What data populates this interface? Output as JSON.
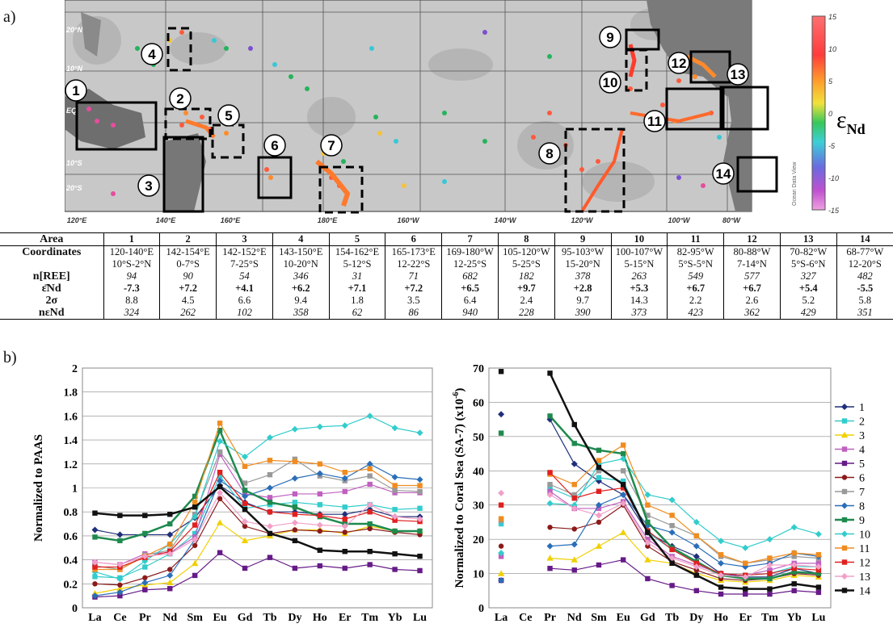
{
  "panel_a_label": "a)",
  "panel_b_label": "b)",
  "map": {
    "lat_labels": [
      "20°N",
      "10°N",
      "EQ",
      "10°S",
      "20°S"
    ],
    "lon_labels": [
      "120°E",
      "140°E",
      "160°E",
      "180°E",
      "160°W",
      "140°W",
      "120°W",
      "100°W",
      "80°W"
    ],
    "colorbar_ticks": [
      "15",
      "10",
      "5",
      "0",
      "-5",
      "-10",
      "-15"
    ],
    "colorbar_label": "εNd",
    "colorbar_label_main": "ε",
    "colorbar_label_sub": "Nd",
    "watermark": "Ocean Data View",
    "areas": [
      "1",
      "2",
      "3",
      "4",
      "5",
      "6",
      "7",
      "8",
      "9",
      "10",
      "11",
      "12",
      "13",
      "14"
    ]
  },
  "table": {
    "header": "Area",
    "areas": [
      "1",
      "2",
      "3",
      "4",
      "5",
      "6",
      "7",
      "8",
      "9",
      "10",
      "11",
      "12",
      "13",
      "14"
    ],
    "rows": [
      {
        "label": "Coordinates",
        "style": "",
        "values": [
          "120-140°E",
          "142-154°E",
          "142-152°E",
          "143-150°E",
          "154-162°E",
          "165-173°E",
          "169-180°W",
          "105-120°W",
          "95-103°W",
          "100-107°W",
          "82-95°W",
          "80-88°W",
          "70-82°W",
          "68-77°W"
        ]
      },
      {
        "label": "",
        "style": "",
        "values": [
          "10°S-2°N",
          "0-7°S",
          "7-25°S",
          "10-20°N",
          "5-12°S",
          "12-22°S",
          "12-25°S",
          "5-25°S",
          "15-20°N",
          "5-15°N",
          "5°S-5°N",
          "7-14°N",
          "5°S-6°N",
          "12-20°S"
        ]
      },
      {
        "label": "n[REE]",
        "style": "i",
        "values": [
          "94",
          "90",
          "54",
          "346",
          "31",
          "71",
          "682",
          "182",
          "378",
          "263",
          "549",
          "577",
          "327",
          "482"
        ]
      },
      {
        "label": "ε̄Nd",
        "style": "b",
        "values": [
          "-7.3",
          "+7.2",
          "+4.1",
          "+6.2",
          "+7.1",
          "+7.2",
          "+6.5",
          "+9.7",
          "+2.8",
          "+5.3",
          "+6.7",
          "+6.7",
          "+5.4",
          "-5.5"
        ]
      },
      {
        "label": "2σ",
        "style": "",
        "values": [
          "8.8",
          "4.5",
          "6.6",
          "9.4",
          "1.8",
          "3.5",
          "6.4",
          "2.4",
          "9.7",
          "14.3",
          "2.2",
          "2.6",
          "5.2",
          "5.8"
        ]
      },
      {
        "label": "nεNd",
        "style": "i",
        "values": [
          "324",
          "262",
          "102",
          "358",
          "62",
          "86",
          "940",
          "228",
          "390",
          "373",
          "423",
          "362",
          "429",
          "351"
        ]
      }
    ]
  },
  "chart_data": [
    {
      "type": "line",
      "ylabel": "Normalized to PAAS",
      "categories": [
        "La",
        "Ce",
        "Pr",
        "Nd",
        "Sm",
        "Eu",
        "Gd",
        "Tb",
        "Dy",
        "Ho",
        "Er",
        "Tm",
        "Yb",
        "Lu"
      ],
      "ylim": [
        0,
        2
      ],
      "yticks": [
        "0",
        "0.2",
        "0.4",
        "0.6",
        "0.8",
        "1",
        "1.2",
        "1.4",
        "1.6",
        "1.8",
        "2"
      ],
      "series": [
        {
          "name": "1",
          "color": "#1f2f7a",
          "marker": "diamond",
          "values": [
            0.65,
            0.61,
            0.61,
            0.61,
            0.75,
            1.02,
            0.88,
            0.8,
            0.8,
            0.78,
            0.78,
            0.82,
            0.76,
            0.76
          ]
        },
        {
          "name": "2",
          "color": "#33cccc",
          "marker": "square",
          "values": [
            0.26,
            0.25,
            0.34,
            0.45,
            0.62,
            1.1,
            0.83,
            0.86,
            0.88,
            0.86,
            0.84,
            0.86,
            0.82,
            0.83
          ]
        },
        {
          "name": "3",
          "color": "#f0d000",
          "marker": "triangle",
          "values": [
            0.12,
            0.16,
            0.19,
            0.21,
            0.37,
            0.71,
            0.56,
            0.6,
            0.65,
            0.65,
            0.62,
            0.68,
            0.64,
            0.64
          ]
        },
        {
          "name": "4",
          "color": "#c060c0",
          "marker": "square",
          "values": [
            0.38,
            0.36,
            0.45,
            0.46,
            0.59,
            1.28,
            0.95,
            0.92,
            0.95,
            0.95,
            0.97,
            1.03,
            0.96,
            0.96
          ]
        },
        {
          "name": "5",
          "color": "#661a88",
          "marker": "square",
          "values": [
            0.09,
            0.1,
            0.15,
            0.16,
            0.27,
            0.46,
            0.33,
            0.42,
            0.33,
            0.35,
            0.33,
            0.36,
            0.32,
            0.31
          ]
        },
        {
          "name": "6",
          "color": "#8b1a1a",
          "marker": "circle",
          "values": [
            0.2,
            0.19,
            0.25,
            0.32,
            0.52,
            0.91,
            0.68,
            0.62,
            0.65,
            0.64,
            0.63,
            0.66,
            0.63,
            0.61
          ]
        },
        {
          "name": "7",
          "color": "#999999",
          "marker": "square",
          "values": [
            0.35,
            0.32,
            0.44,
            0.48,
            0.78,
            1.3,
            1.04,
            1.11,
            1.24,
            1.1,
            1.06,
            1.1,
            0.98,
            0.97
          ]
        },
        {
          "name": "8",
          "color": "#2a6eb8",
          "marker": "diamond",
          "values": [
            0.1,
            0.13,
            0.21,
            0.27,
            0.57,
            1.06,
            0.93,
            1.0,
            1.08,
            1.12,
            1.08,
            1.2,
            1.09,
            1.07
          ]
        },
        {
          "name": "9",
          "color": "#1e8a4e",
          "marker": "square",
          "values": [
            0.59,
            0.56,
            0.62,
            0.7,
            0.93,
            1.48,
            0.98,
            0.88,
            0.84,
            0.76,
            0.7,
            0.7,
            0.64,
            0.64
          ]
        },
        {
          "name": "10",
          "color": "#33cccc",
          "marker": "diamond",
          "values": [
            0.3,
            0.24,
            0.39,
            0.53,
            0.76,
            1.39,
            1.26,
            1.42,
            1.49,
            1.51,
            1.52,
            1.6,
            1.5,
            1.46
          ]
        },
        {
          "name": "11",
          "color": "#f08c20",
          "marker": "square",
          "values": [
            0.32,
            0.32,
            0.43,
            0.53,
            0.88,
            1.54,
            1.18,
            1.23,
            1.22,
            1.2,
            1.13,
            1.16,
            1.02,
            1.02
          ]
        },
        {
          "name": "12",
          "color": "#e02020",
          "marker": "square",
          "values": [
            0.34,
            0.34,
            0.42,
            0.47,
            0.69,
            1.13,
            0.87,
            0.8,
            0.78,
            0.77,
            0.74,
            0.8,
            0.73,
            0.72
          ]
        },
        {
          "name": "13",
          "color": "#f2a0c8",
          "marker": "diamond",
          "values": [
            0.38,
            0.36,
            0.43,
            0.45,
            0.57,
            0.96,
            0.72,
            0.68,
            0.71,
            0.69,
            0.68,
            0.86,
            0.76,
            0.74
          ]
        },
        {
          "name": "14",
          "color": "#111111",
          "marker": "square",
          "values": [
            0.79,
            0.77,
            0.77,
            0.78,
            0.84,
            1.01,
            0.82,
            0.62,
            0.56,
            0.48,
            0.47,
            0.47,
            0.45,
            0.43
          ]
        }
      ]
    },
    {
      "type": "line",
      "ylabel": "Normalized to Coral Sea (SA-7) (x10",
      "ylabel_sup": "-6",
      "ylabel_tail": ")",
      "categories": [
        "La",
        "Ce",
        "Pr",
        "Nd",
        "Sm",
        "Eu",
        "Gd",
        "Tb",
        "Dy",
        "Ho",
        "Er",
        "Tm",
        "Yb",
        "Lu"
      ],
      "ylim": [
        0,
        70
      ],
      "yticks": [
        "0",
        "10",
        "20",
        "30",
        "40",
        "50",
        "60",
        "70"
      ],
      "legend_position": "right",
      "series": [
        {
          "name": "1",
          "color": "#1f2f7a",
          "marker": "diamond",
          "values": [
            56.5,
            null,
            55,
            42,
            37,
            33,
            22,
            18,
            15,
            10,
            9,
            9,
            11.5,
            10
          ]
        },
        {
          "name": "2",
          "color": "#33cccc",
          "marker": "square",
          "values": [
            24.5,
            null,
            35,
            32,
            38,
            37,
            22,
            17,
            13,
            10,
            9.5,
            10,
            12,
            12
          ]
        },
        {
          "name": "3",
          "color": "#f0d000",
          "marker": "triangle",
          "values": [
            10,
            null,
            14.5,
            14,
            18,
            22,
            14,
            13,
            10,
            8,
            7.5,
            8,
            9.5,
            9
          ]
        },
        {
          "name": "4",
          "color": "#c060c0",
          "marker": "square",
          "values": [
            15,
            null,
            34,
            29,
            29,
            31,
            20,
            15,
            12.5,
            10,
            9.5,
            11,
            13,
            13
          ]
        },
        {
          "name": "5",
          "color": "#661a88",
          "marker": "square",
          "values": [
            8,
            null,
            11.5,
            11,
            12.5,
            14,
            8.5,
            6.5,
            5,
            4,
            4,
            4,
            5,
            4.5
          ]
        },
        {
          "name": "6",
          "color": "#8b1a1a",
          "marker": "circle",
          "values": [
            18,
            null,
            23.5,
            23,
            25,
            30,
            18,
            13.5,
            11,
            8.5,
            8,
            8.5,
            10,
            9.5
          ]
        },
        {
          "name": "7",
          "color": "#999999",
          "marker": "square",
          "values": [
            25.5,
            null,
            36,
            33,
            40,
            40,
            27,
            24,
            21,
            15,
            13,
            14,
            15,
            14.5
          ]
        },
        {
          "name": "8",
          "color": "#2a6eb8",
          "marker": "diamond",
          "values": [
            8,
            null,
            18,
            18.5,
            30,
            33,
            24,
            22,
            18,
            13,
            12,
            13,
            16,
            15
          ]
        },
        {
          "name": "9",
          "color": "#1e8a4e",
          "marker": "square",
          "values": [
            51,
            null,
            56,
            48,
            46,
            45,
            25,
            17.5,
            13.5,
            9.5,
            8.5,
            8.5,
            10.5,
            10
          ]
        },
        {
          "name": "10",
          "color": "#33cccc",
          "marker": "diamond",
          "values": [
            16,
            null,
            30.5,
            30,
            42,
            43.5,
            33,
            31.5,
            25,
            19.5,
            17.5,
            20,
            23.5,
            21.5
          ]
        },
        {
          "name": "11",
          "color": "#f08c20",
          "marker": "square",
          "values": [
            26,
            null,
            39,
            36,
            43,
            47.5,
            30,
            27,
            21,
            15.5,
            13,
            14.5,
            16,
            15.5
          ]
        },
        {
          "name": "12",
          "color": "#e02020",
          "marker": "square",
          "values": [
            30,
            null,
            39.5,
            32,
            34,
            35,
            22.5,
            17,
            13,
            10,
            9.5,
            10,
            11.5,
            11
          ]
        },
        {
          "name": "13",
          "color": "#f2a0c8",
          "marker": "diamond",
          "values": [
            33.5,
            null,
            33,
            29,
            27,
            30.5,
            19,
            14.5,
            12,
            9.5,
            9,
            12.5,
            12.5,
            12
          ]
        },
        {
          "name": "14",
          "color": "#111111",
          "marker": "square",
          "values": [
            69,
            null,
            68.5,
            53.5,
            41,
            36,
            22,
            13,
            9.5,
            6,
            5.5,
            5.5,
            7,
            6
          ]
        }
      ]
    }
  ]
}
